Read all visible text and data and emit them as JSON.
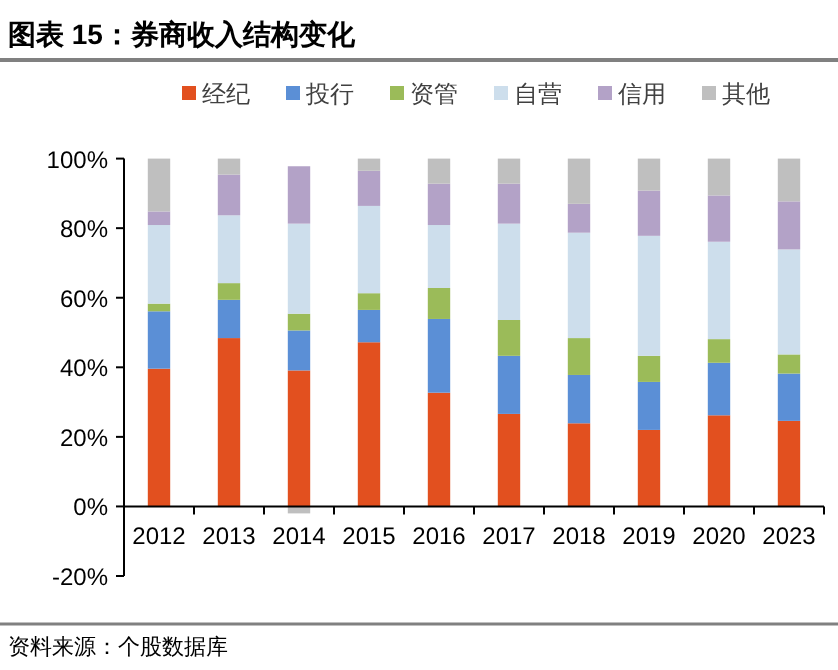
{
  "chart_data": {
    "type": "bar",
    "stacked": true,
    "title": "图表 15：券商收入结构变化",
    "categories": [
      "2012",
      "2013",
      "2014",
      "2015",
      "2016",
      "2017",
      "2018",
      "2019",
      "2020",
      "2023"
    ],
    "series": [
      {
        "name": "经纪",
        "color": "#e2501f",
        "values": [
          39.6,
          48.4,
          39.1,
          47.2,
          32.7,
          26.6,
          23.9,
          22.0,
          26.2,
          24.6
        ]
      },
      {
        "name": "投行",
        "color": "#5b8fd6",
        "values": [
          16.5,
          11.0,
          11.5,
          9.3,
          21.2,
          16.7,
          13.9,
          13.8,
          15.1,
          13.6
        ]
      },
      {
        "name": "资管",
        "color": "#9bbb59",
        "values": [
          2.2,
          4.8,
          4.8,
          4.8,
          8.9,
          10.3,
          10.6,
          7.5,
          6.8,
          5.5
        ]
      },
      {
        "name": "自营",
        "color": "#cddeec",
        "values": [
          22.6,
          19.5,
          25.9,
          25.1,
          18.1,
          27.7,
          30.3,
          34.5,
          28.0,
          30.2
        ]
      },
      {
        "name": "信用",
        "color": "#b3a2c7",
        "values": [
          3.9,
          11.7,
          16.5,
          10.1,
          11.9,
          11.5,
          8.3,
          13.0,
          13.3,
          13.8
        ]
      },
      {
        "name": "其他",
        "color": "#bfbfbf",
        "values": [
          15.2,
          4.6,
          -2.0,
          3.5,
          7.2,
          7.2,
          13.0,
          9.2,
          10.6,
          12.3
        ]
      }
    ],
    "ylim": [
      -20,
      100
    ],
    "yticks": [
      {
        "value": -20,
        "label": "-20%"
      },
      {
        "value": 0,
        "label": "0%"
      },
      {
        "value": 20,
        "label": "20%"
      },
      {
        "value": 40,
        "label": "40%"
      },
      {
        "value": 60,
        "label": "60%"
      },
      {
        "value": 80,
        "label": "80%"
      },
      {
        "value": 100,
        "label": "100%"
      }
    ],
    "grid": false,
    "legend": "top",
    "annotations": [
      "资料来源：个股数据库"
    ]
  }
}
